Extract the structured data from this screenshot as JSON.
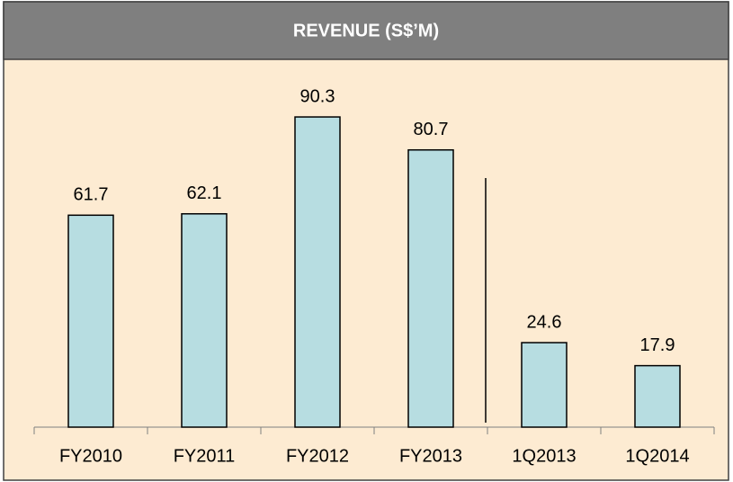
{
  "chart_data": {
    "type": "bar",
    "title": "REVENUE (S$’M)",
    "categories": [
      "FY2010",
      "FY2011",
      "FY2012",
      "FY2013",
      "1Q2013",
      "1Q2014"
    ],
    "values": [
      61.7,
      62.1,
      90.3,
      80.7,
      24.6,
      17.9
    ],
    "color": "#b7dde1",
    "ylim": [
      0,
      100
    ]
  }
}
